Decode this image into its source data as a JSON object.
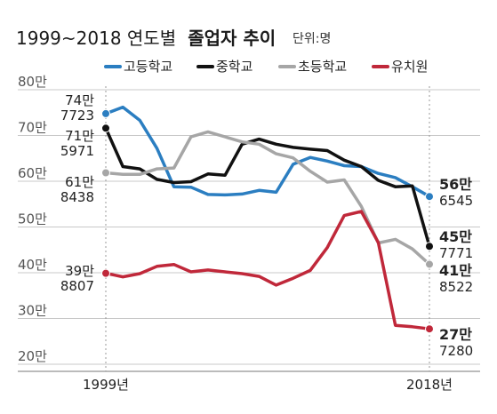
{
  "chart_data": {
    "type": "line",
    "title": "1999~2018 연도별",
    "title_bold": "졸업자 추이",
    "unit_label": "단위:명",
    "y_ticks": [
      "80만",
      "70만",
      "60만",
      "50만",
      "40만",
      "30만",
      "20만"
    ],
    "y_tick_values": [
      800000,
      700000,
      600000,
      500000,
      400000,
      300000,
      200000
    ],
    "ylim": [
      200000,
      800000
    ],
    "x_start": 1999,
    "x_end": 2018,
    "x_tick_labels": [
      "1999년",
      "2018년"
    ],
    "grid": true,
    "legend_position": "top",
    "series": [
      {
        "name": "고등학교",
        "color": "#2b7ec1",
        "values": [
          747723,
          762000,
          733000,
          672000,
          588000,
          587000,
          571000,
          570000,
          572000,
          580000,
          576000,
          637000,
          652000,
          644000,
          634000,
          632000,
          617000,
          608000,
          588000,
          566545
        ],
        "start_label": [
          "74만",
          "7723"
        ],
        "end_label": [
          "56만",
          "6545"
        ]
      },
      {
        "name": "중학교",
        "color": "#111111",
        "values": [
          715971,
          632000,
          627000,
          604000,
          597000,
          599000,
          616000,
          613000,
          681000,
          692000,
          681000,
          674000,
          670000,
          667000,
          646000,
          632000,
          602000,
          588000,
          590000,
          457771
        ],
        "start_label": [
          "71만",
          "5971"
        ],
        "end_label": [
          "45만",
          "7771"
        ]
      },
      {
        "name": "초등학교",
        "color": "#a6a6a6",
        "values": [
          618438,
          615000,
          615000,
          627000,
          629000,
          697000,
          708000,
          697000,
          686000,
          681000,
          660000,
          651000,
          622000,
          598000,
          603000,
          545000,
          465000,
          473000,
          452000,
          418522
        ],
        "start_label": [
          "61만",
          "8438"
        ],
        "end_label": [
          "41만",
          "8522"
        ]
      },
      {
        "name": "유치원",
        "color": "#c0283a",
        "values": [
          398807,
          391000,
          398000,
          414000,
          418000,
          402000,
          406000,
          402000,
          398000,
          392000,
          373000,
          388000,
          405000,
          455000,
          525000,
          534000,
          466000,
          285000,
          282000,
          277280
        ],
        "start_label": [
          "39만",
          "8807"
        ],
        "end_label": [
          "27만",
          "7280"
        ]
      }
    ]
  }
}
